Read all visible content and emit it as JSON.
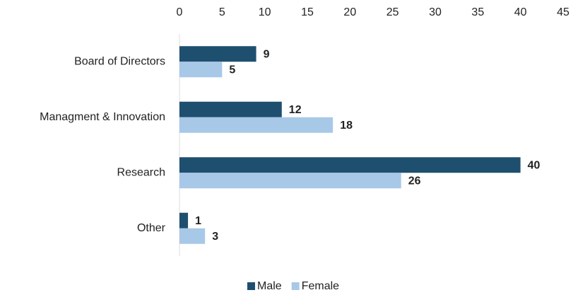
{
  "chart_data": {
    "type": "barh",
    "categories": [
      "Board of Directors",
      "Managment & Innovation",
      "Research",
      "Other"
    ],
    "series": [
      {
        "name": "Male",
        "color": "#1f4f6f",
        "values": [
          9,
          12,
          40,
          1
        ]
      },
      {
        "name": "Female",
        "color": "#a8c8e8",
        "values": [
          5,
          18,
          26,
          3
        ]
      }
    ],
    "xlim": [
      0,
      45
    ],
    "xticks": [
      0,
      5,
      10,
      15,
      20,
      25,
      30,
      35,
      40,
      45
    ],
    "legend": "bottom",
    "grid": false
  }
}
